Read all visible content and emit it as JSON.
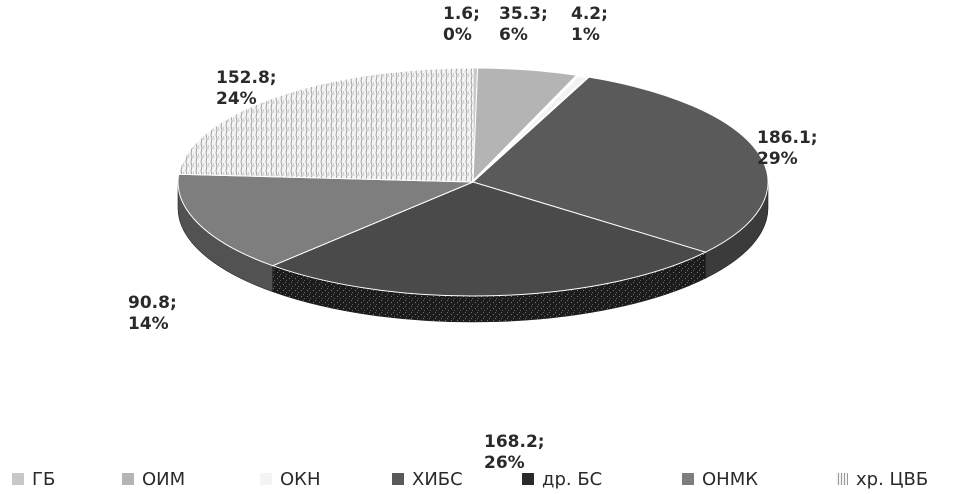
{
  "chart_data": {
    "type": "pie",
    "title": "",
    "slices": [
      {
        "name": "ГБ",
        "value": 1.6,
        "percent": "0%",
        "label_value": "1.6;",
        "color": "#c8c8c8"
      },
      {
        "name": "ОИМ",
        "value": 35.3,
        "percent": "6%",
        "label_value": "35.3;",
        "color": "#b4b4b4"
      },
      {
        "name": "ОКН",
        "value": 4.2,
        "percent": "1%",
        "label_value": "4.2;",
        "color": "#f2f2f2"
      },
      {
        "name": "ХИБС",
        "value": 186.1,
        "percent": "29%",
        "label_value": "186.1;",
        "color": "#5a5a5a"
      },
      {
        "name": "др. БС",
        "value": 168.2,
        "percent": "26%",
        "label_value": "168.2;",
        "color": "#4a4a4a"
      },
      {
        "name": "ОНМК",
        "value": 90.8,
        "percent": "14%",
        "label_value": "90.8;",
        "color": "#7e7e7e"
      },
      {
        "name": "хр. ЦВБ",
        "value": 152.8,
        "percent": "24%",
        "label_value": "152.8;",
        "color": "#e8e8e8"
      }
    ],
    "legend_position": "bottom"
  }
}
